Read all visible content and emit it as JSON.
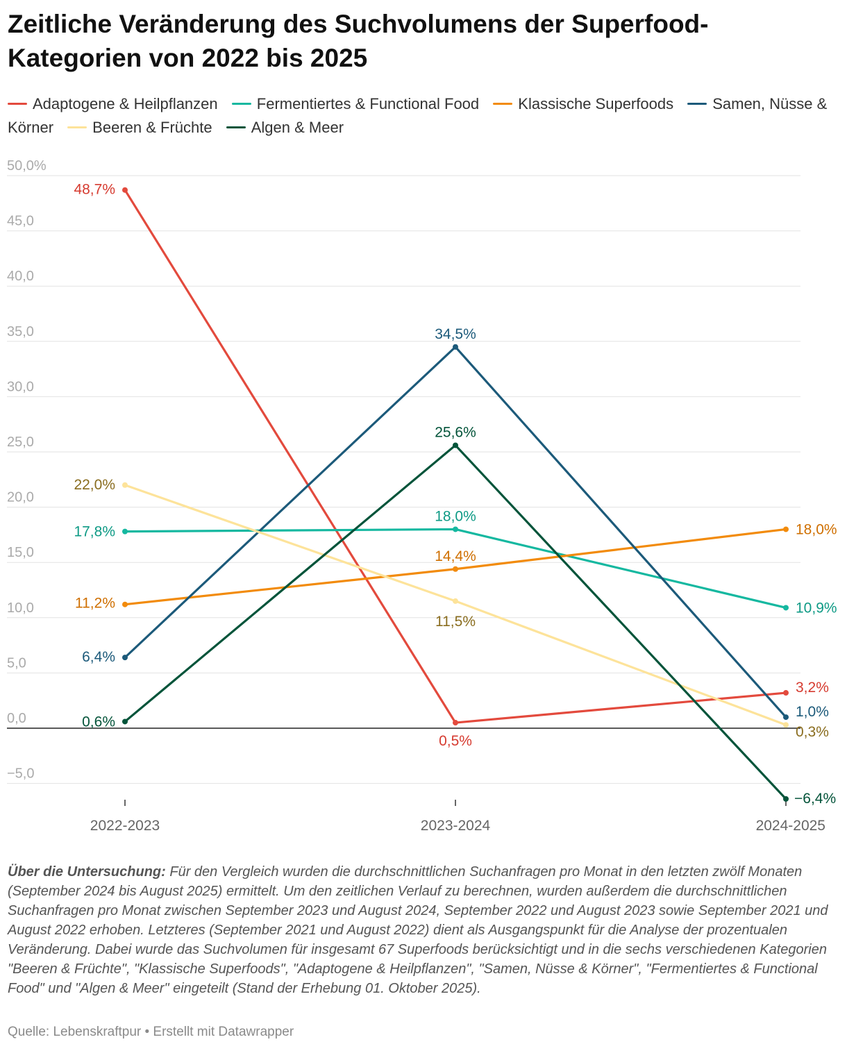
{
  "title": "Zeitliche Veränderung des Suchvolumens der Superfood-Kategorien von 2022 bis 2025",
  "chart_data": {
    "type": "line",
    "title": "Zeitliche Veränderung des Suchvolumens der Superfood-Kategorien von 2022 bis 2025",
    "xlabel": "",
    "ylabel": "",
    "categories": [
      "2022-2023",
      "2023-2024",
      "2024-2025"
    ],
    "ylim": [
      -7,
      51
    ],
    "yticks": [
      -5,
      0,
      5,
      10,
      15,
      20,
      25,
      30,
      35,
      40,
      45,
      50
    ],
    "ytick_labels": [
      "−5,0",
      "0,0",
      "5,0",
      "10,0",
      "15,0",
      "20,0",
      "25,0",
      "30,0",
      "35,0",
      "40,0",
      "45,0",
      "50,0%"
    ],
    "series": [
      {
        "name": "Adaptogene & Heilpflanzen",
        "color": "#e34a3d",
        "label_color": "#d63b30",
        "values": [
          48.7,
          0.5,
          3.2
        ],
        "labels": [
          "48,7%",
          "0,5%",
          "3,2%"
        ]
      },
      {
        "name": "Fermentiertes & Functional Food",
        "color": "#15b8a0",
        "label_color": "#0e9a85",
        "values": [
          17.8,
          18.0,
          10.9
        ],
        "labels": [
          "17,8%",
          "18,0%",
          "10,9%"
        ]
      },
      {
        "name": "Klassische Superfoods",
        "color": "#f28b0c",
        "label_color": "#cf6f00",
        "values": [
          11.2,
          14.4,
          18.0
        ],
        "labels": [
          "11,2%",
          "14,4%",
          "18,0%"
        ]
      },
      {
        "name": "Samen, Nüsse & Körner",
        "color": "#1c5a7a",
        "label_color": "#1c5a7a",
        "values": [
          6.4,
          34.5,
          1.0
        ],
        "labels": [
          "6,4%",
          "34,5%",
          "1,0%"
        ]
      },
      {
        "name": "Beeren & Früchte",
        "color": "#fde39a",
        "label_color": "#8a6d1f",
        "values": [
          22.0,
          11.5,
          0.3
        ],
        "labels": [
          "22,0%",
          "11,5%",
          "0,3%"
        ]
      },
      {
        "name": "Algen & Meer",
        "color": "#04543a",
        "label_color": "#04543a",
        "values": [
          0.6,
          25.6,
          -6.4
        ],
        "labels": [
          "0,6%",
          "25,6%",
          "−6,4%"
        ]
      }
    ]
  },
  "notes": {
    "lead": "Über die Untersuchung:",
    "text": " Für den Vergleich wurden die durchschnittlichen Suchanfragen pro Monat in den letzten zwölf Monaten (September 2024 bis August 2025) ermittelt. Um den zeitlichen Verlauf zu berechnen, wurden außerdem die durchschnittlichen Suchanfragen pro Monat zwischen September 2023 und August 2024, September 2022 und August 2023 sowie September 2021 und August 2022 erhoben. Letzteres (September 2021 und August 2022) dient als Ausgangspunkt für die Analyse der prozentualen Veränderung. Dabei wurde das Suchvolumen für insgesamt 67 Superfoods berücksichtigt und in die sechs verschiedenen Kategorien \"Beeren & Früchte\", \"Klassische Superfoods\", \"Adaptogene & Heilpflanzen\", \"Samen, Nüsse & Körner\", \"Fermentiertes & Functional Food\" und \"Algen & Meer\" eingeteilt (Stand der Erhebung 01. Oktober 2025)."
  },
  "source": "Quelle: Lebenskraftpur • Erstellt mit Datawrapper"
}
